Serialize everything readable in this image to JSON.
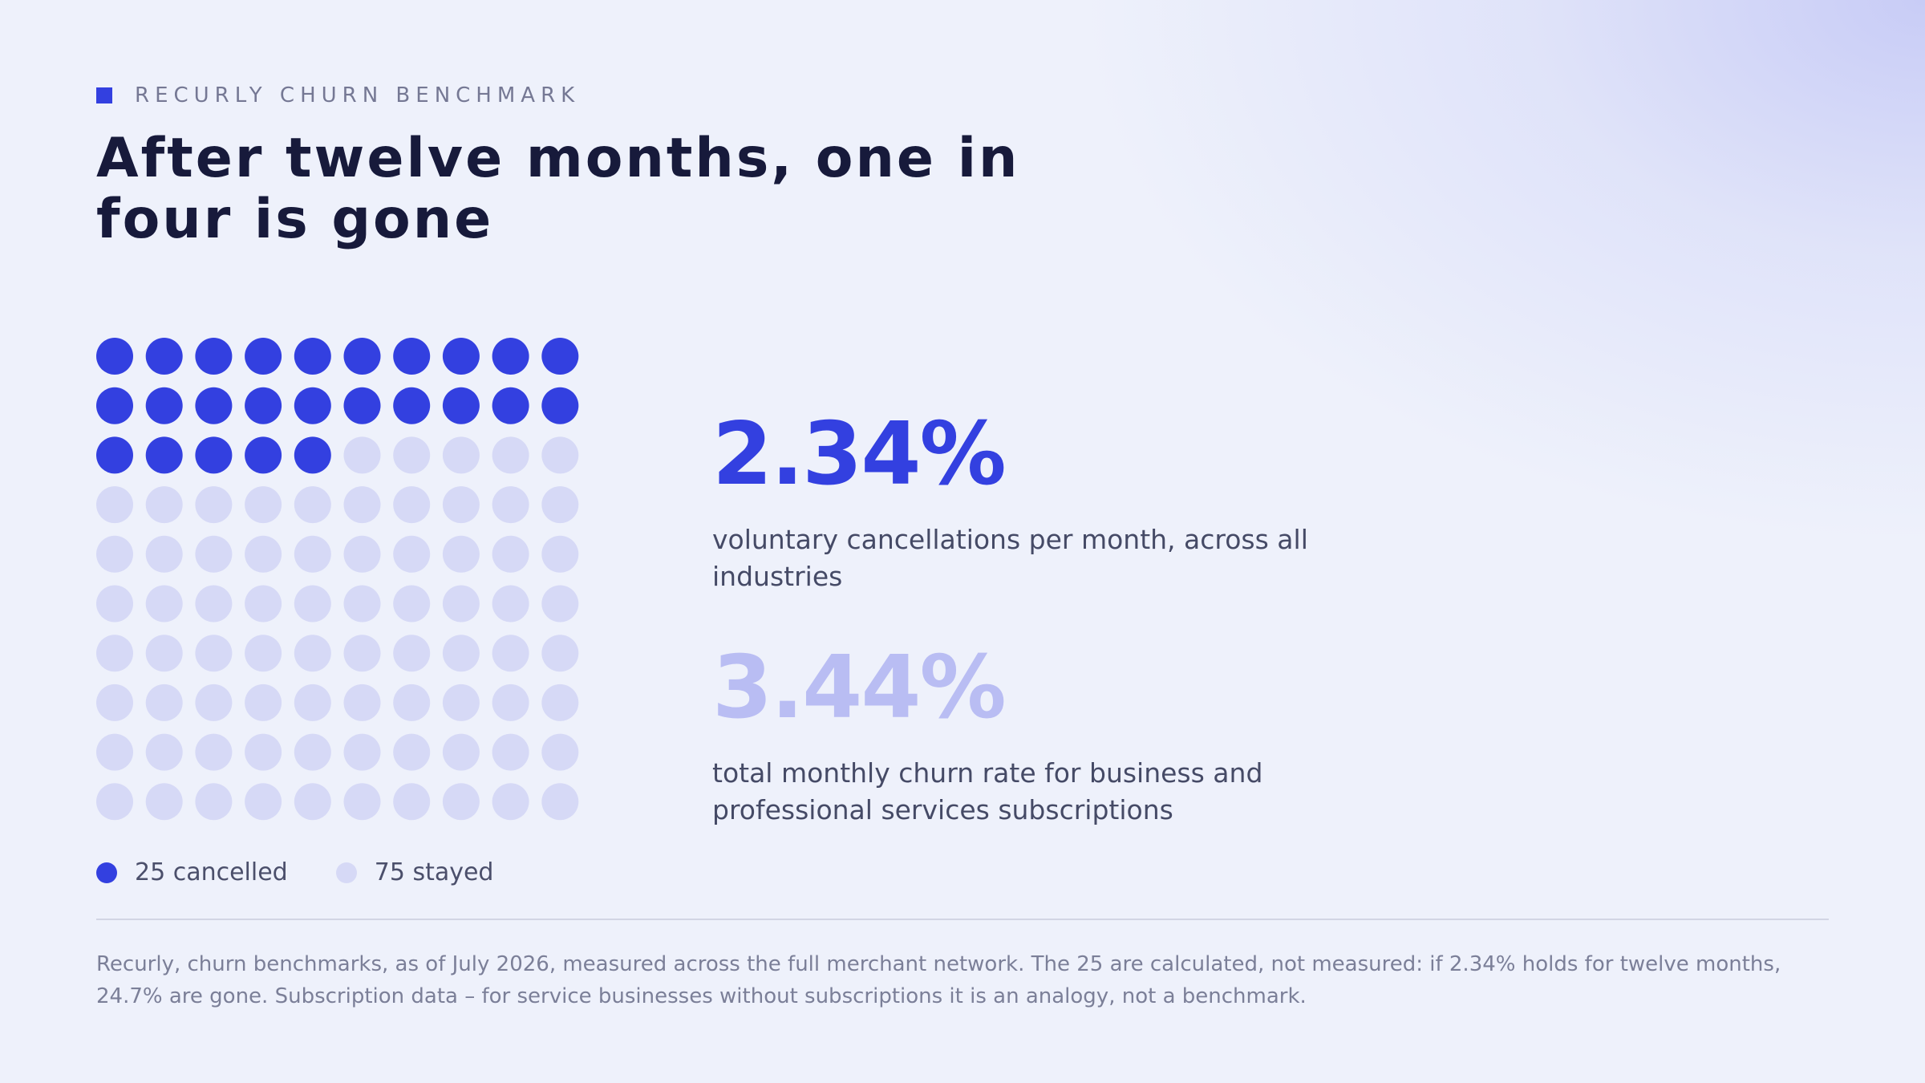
{
  "eyebrow": "RECURLY CHURN BENCHMARK",
  "title": "After twelve months, one in four is gone",
  "colors": {
    "accent": "#3340e0",
    "light_dot": "#d6d9f6",
    "muted_stat": "#b9bdf3",
    "text_dark": "#171a3b"
  },
  "chart_data": {
    "type": "waffle",
    "grid": {
      "rows": 10,
      "cols": 10
    },
    "total": 100,
    "series": [
      {
        "name": "25 cancelled",
        "value": 25,
        "color": "#3340e0"
      },
      {
        "name": "75 stayed",
        "value": 75,
        "color": "#d6d9f6"
      }
    ],
    "legend": "bottom"
  },
  "stats": [
    {
      "value": "2.34%",
      "description": "voluntary cancellations per month, across all industries",
      "color": "#3340e0"
    },
    {
      "value": "3.44%",
      "description": "total monthly churn rate for business and professional services subscriptions",
      "color": "#b9bdf3"
    }
  ],
  "footnote": "Recurly, churn benchmarks, as of July 2026, measured across the full merchant network. The 25 are calculated, not measured: if 2.34% holds for twelve months, 24.7% are gone. Subscription data – for service businesses without subscriptions it is an analogy, not a benchmark."
}
